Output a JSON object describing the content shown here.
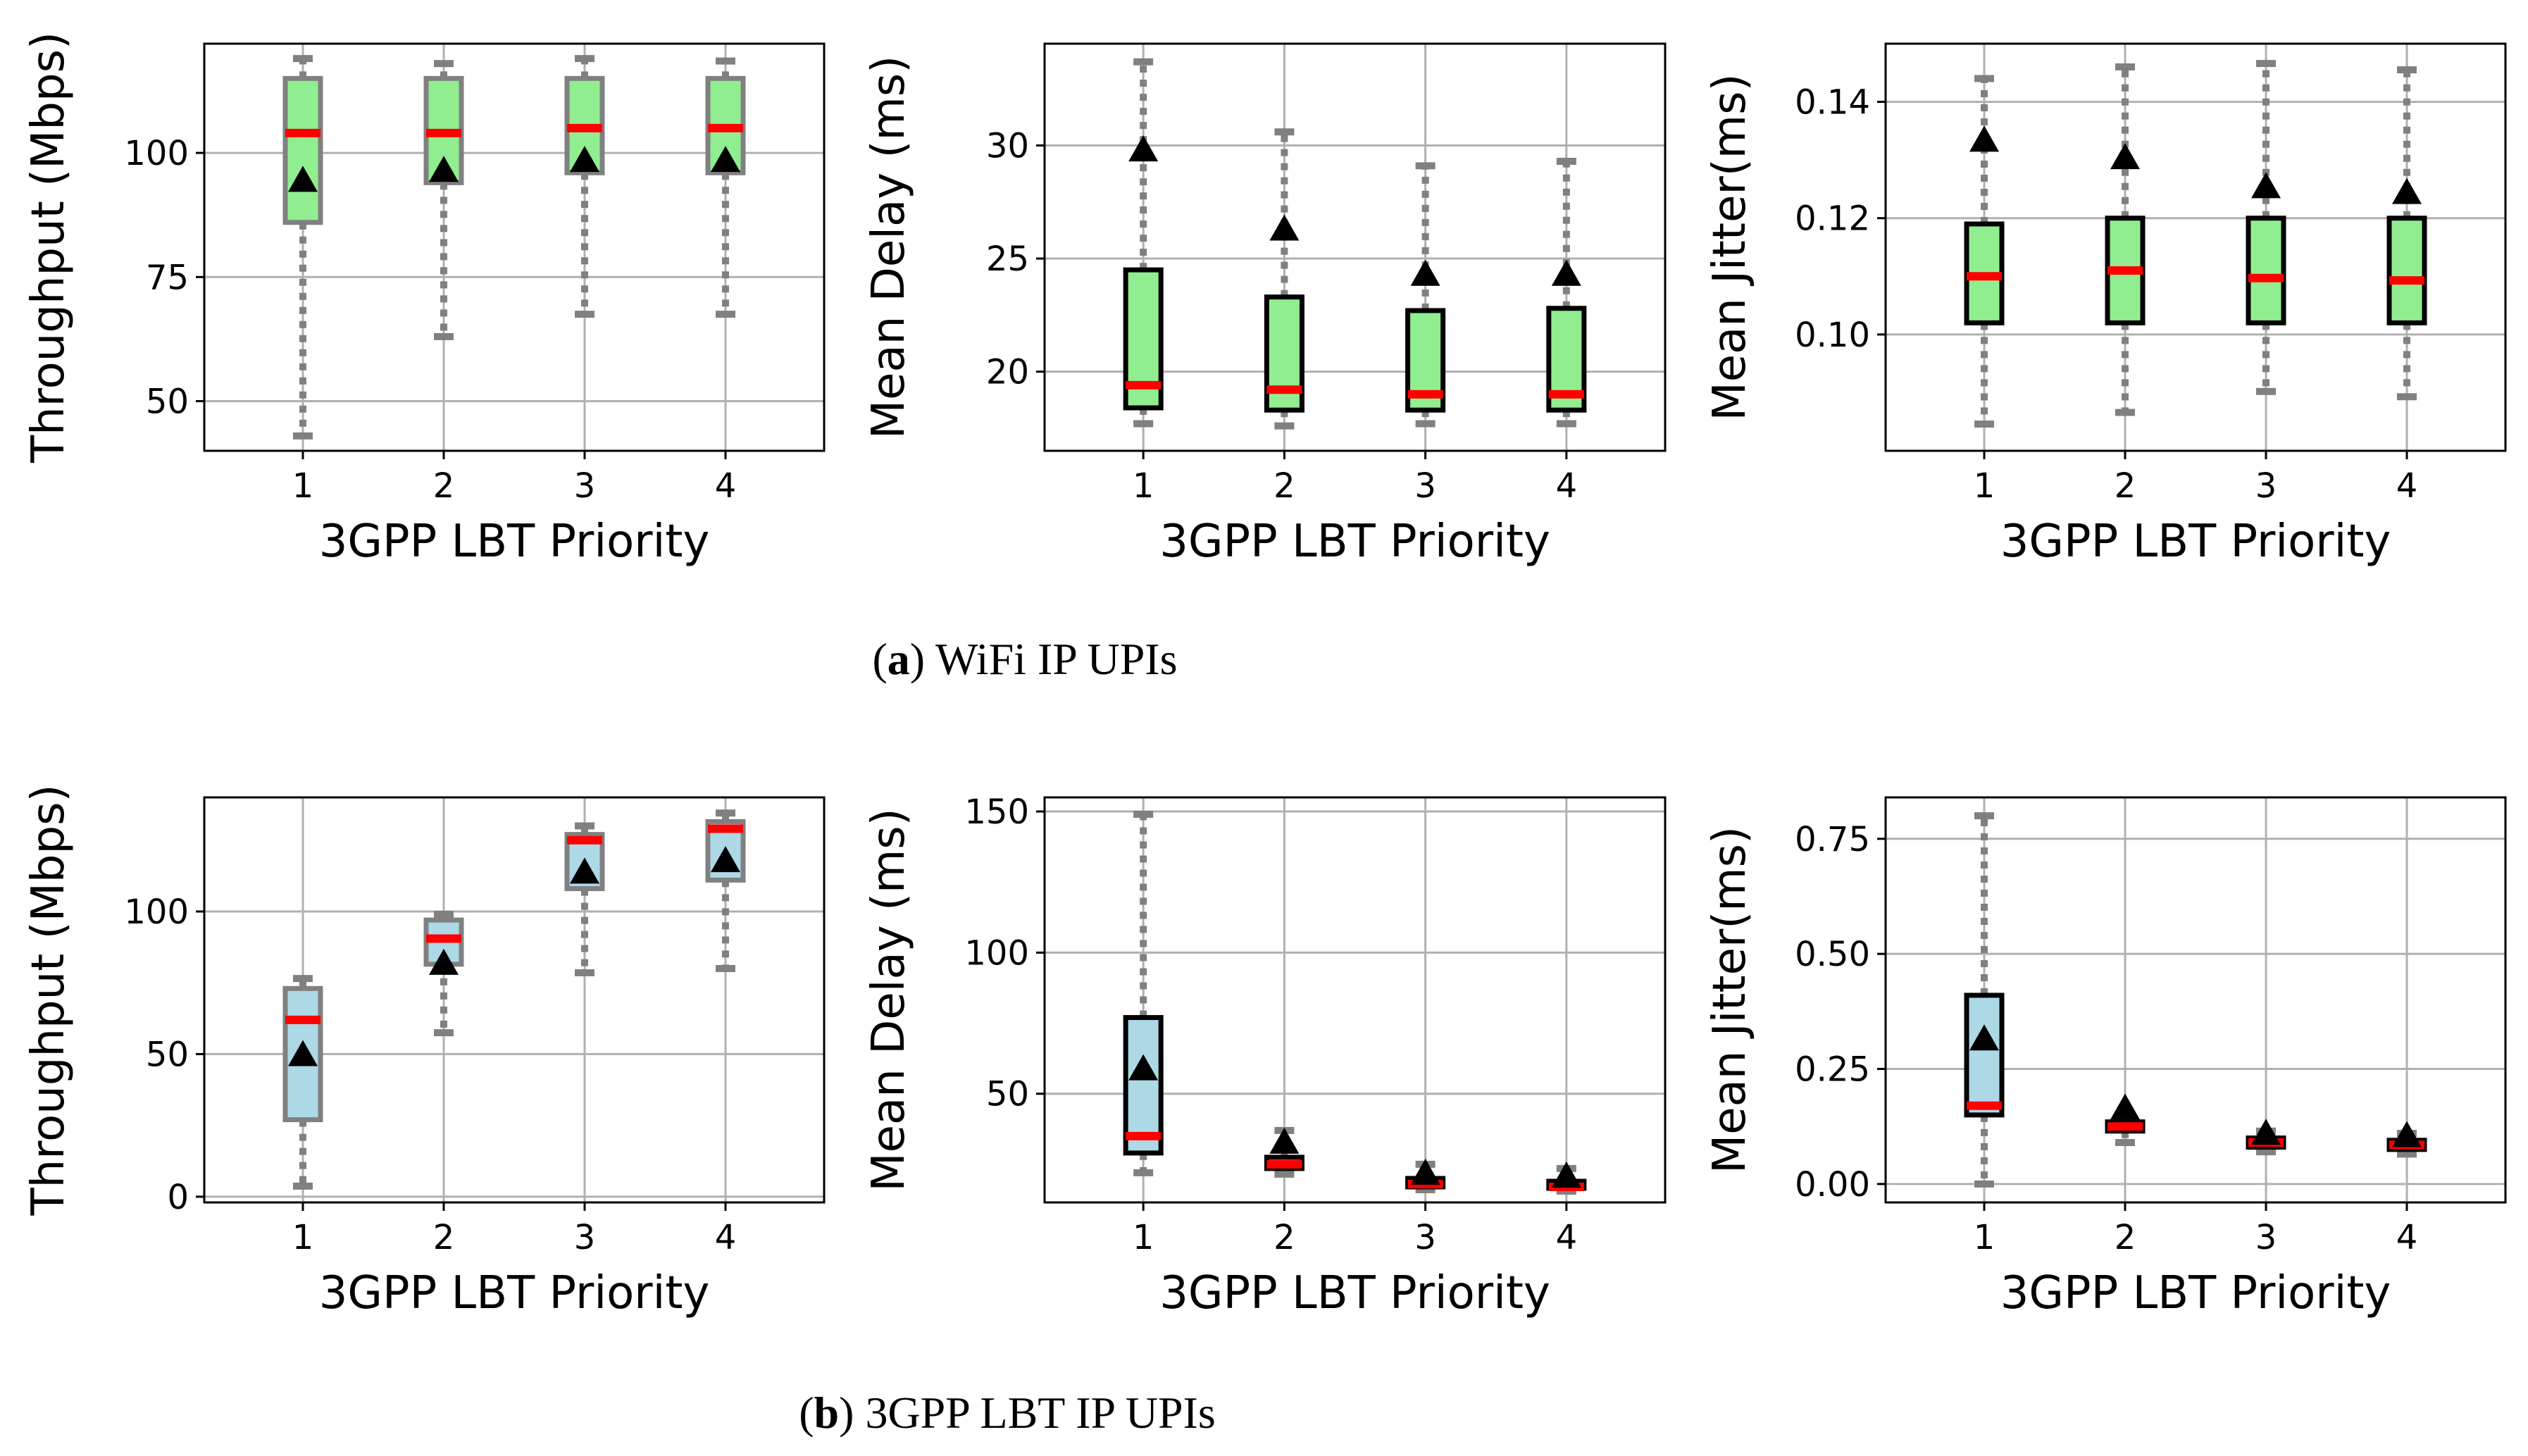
{
  "captions": {
    "a_letter": "a",
    "a_text": " WiFi IP UPIs",
    "b_letter": "b",
    "b_text": " 3GPP LBT IP UPIs"
  },
  "colors": {
    "green_box": "#90ee90",
    "blue_box": "#add8e6",
    "median": "#ff0000",
    "mean": "#000000",
    "whisker": "#808080",
    "grid": "#b0b0b0"
  },
  "chart_data": [
    {
      "id": "a-throughput",
      "type": "box",
      "xlabel": "3GPP LBT Priority",
      "ylabel": "Throughput (Mbps)",
      "categories": [
        "1",
        "2",
        "3",
        "4"
      ],
      "ylim": [
        40,
        122
      ],
      "yticks": [
        50,
        75,
        100
      ],
      "box_color": "green",
      "box_edge": "gray",
      "stats": [
        {
          "whislo": 43,
          "q1": 86,
          "med": 104,
          "q3": 115,
          "whishi": 119,
          "mean": 94
        },
        {
          "whislo": 63,
          "q1": 94,
          "med": 104,
          "q3": 115,
          "whishi": 118,
          "mean": 96
        },
        {
          "whislo": 67.5,
          "q1": 96,
          "med": 105,
          "q3": 115,
          "whishi": 119,
          "mean": 98
        },
        {
          "whislo": 67.5,
          "q1": 96,
          "med": 105,
          "q3": 115,
          "whishi": 118.5,
          "mean": 98
        }
      ]
    },
    {
      "id": "a-delay",
      "type": "box",
      "xlabel": "3GPP LBT Priority",
      "ylabel": "Mean Delay (ms)",
      "categories": [
        "1",
        "2",
        "3",
        "4"
      ],
      "ylim": [
        16.5,
        34.5
      ],
      "yticks": [
        20,
        25,
        30
      ],
      "box_color": "green",
      "box_edge": "black",
      "stats": [
        {
          "whislo": 17.7,
          "q1": 18.4,
          "med": 19.4,
          "q3": 24.5,
          "whishi": 33.7,
          "mean": 29.7
        },
        {
          "whislo": 17.6,
          "q1": 18.3,
          "med": 19.2,
          "q3": 23.3,
          "whishi": 30.6,
          "mean": 26.2
        },
        {
          "whislo": 17.7,
          "q1": 18.3,
          "med": 19.0,
          "q3": 22.7,
          "whishi": 29.1,
          "mean": 24.2
        },
        {
          "whislo": 17.7,
          "q1": 18.3,
          "med": 19.0,
          "q3": 22.8,
          "whishi": 29.3,
          "mean": 24.2
        }
      ]
    },
    {
      "id": "a-jitter",
      "type": "box",
      "xlabel": "3GPP LBT Priority",
      "ylabel": "Mean Jitter(ms)",
      "categories": [
        "1",
        "2",
        "3",
        "4"
      ],
      "ylim": [
        0.08,
        0.15
      ],
      "yticks": [
        "0.10",
        "0.12",
        "0.14"
      ],
      "box_color": "green",
      "box_edge": "black",
      "stats": [
        {
          "whislo": 0.0846,
          "q1": 0.102,
          "med": 0.11,
          "q3": 0.119,
          "whishi": 0.144,
          "mean": 0.133
        },
        {
          "whislo": 0.0866,
          "q1": 0.102,
          "med": 0.111,
          "q3": 0.12,
          "whishi": 0.146,
          "mean": 0.13
        },
        {
          "whislo": 0.0902,
          "q1": 0.102,
          "med": 0.1097,
          "q3": 0.12,
          "whishi": 0.1466,
          "mean": 0.125
        },
        {
          "whislo": 0.0893,
          "q1": 0.102,
          "med": 0.1093,
          "q3": 0.12,
          "whishi": 0.1455,
          "mean": 0.124
        }
      ]
    },
    {
      "id": "b-throughput",
      "type": "box",
      "xlabel": "3GPP LBT Priority",
      "ylabel": "Throughput (Mbps)",
      "categories": [
        "1",
        "2",
        "3",
        "4"
      ],
      "ylim": [
        -2,
        140
      ],
      "yticks": [
        0,
        50,
        100
      ],
      "box_color": "blue",
      "box_edge": "gray",
      "stats": [
        {
          "whislo": 3.7,
          "q1": 27,
          "med": 62,
          "q3": 73,
          "whishi": 76.5,
          "mean": 49
        },
        {
          "whislo": 57.5,
          "q1": 81.5,
          "med": 90.5,
          "q3": 97,
          "whishi": 99,
          "mean": 81
        },
        {
          "whislo": 78.5,
          "q1": 108,
          "med": 125,
          "q3": 127,
          "whishi": 130,
          "mean": 113
        },
        {
          "whislo": 80,
          "q1": 111,
          "med": 129,
          "q3": 131.5,
          "whishi": 134.5,
          "mean": 117
        }
      ]
    },
    {
      "id": "b-delay",
      "type": "box",
      "xlabel": "3GPP LBT Priority",
      "ylabel": "Mean Delay (ms)",
      "categories": [
        "1",
        "2",
        "3",
        "4"
      ],
      "ylim": [
        11.5,
        155
      ],
      "yticks": [
        50,
        100,
        150
      ],
      "box_color": "blue",
      "box_edge": "black",
      "stats": [
        {
          "whislo": 22,
          "q1": 29,
          "med": 35,
          "q3": 77,
          "whishi": 149,
          "mean": 58
        },
        {
          "whislo": 21.5,
          "q1": 23.5,
          "med": 25,
          "q3": 27.5,
          "whishi": 37,
          "mean": 32
        },
        {
          "whislo": 16,
          "q1": 17,
          "med": 18,
          "q3": 20,
          "whishi": 25,
          "mean": 21
        },
        {
          "whislo": 15.5,
          "q1": 16.5,
          "med": 17,
          "q3": 19,
          "whishi": 23.5,
          "mean": 20
        }
      ]
    },
    {
      "id": "b-jitter",
      "type": "box",
      "xlabel": "3GPP LBT Priority",
      "ylabel": "Mean Jitter(ms)",
      "categories": [
        "1",
        "2",
        "3",
        "4"
      ],
      "ylim": [
        -0.04,
        0.84
      ],
      "yticks": [
        "0.00",
        "0.25",
        "0.50",
        "0.75"
      ],
      "box_color": "blue",
      "box_edge": "black",
      "stats": [
        {
          "whislo": 0.0,
          "q1": 0.15,
          "med": 0.17,
          "q3": 0.41,
          "whishi": 0.8,
          "mean": 0.31
        },
        {
          "whislo": 0.09,
          "q1": 0.115,
          "med": 0.125,
          "q3": 0.135,
          "whishi": 0.15,
          "mean": 0.16
        },
        {
          "whislo": 0.07,
          "q1": 0.08,
          "med": 0.09,
          "q3": 0.1,
          "whishi": 0.115,
          "mean": 0.105
        },
        {
          "whislo": 0.065,
          "q1": 0.075,
          "med": 0.085,
          "q3": 0.095,
          "whishi": 0.11,
          "mean": 0.1
        }
      ]
    }
  ]
}
